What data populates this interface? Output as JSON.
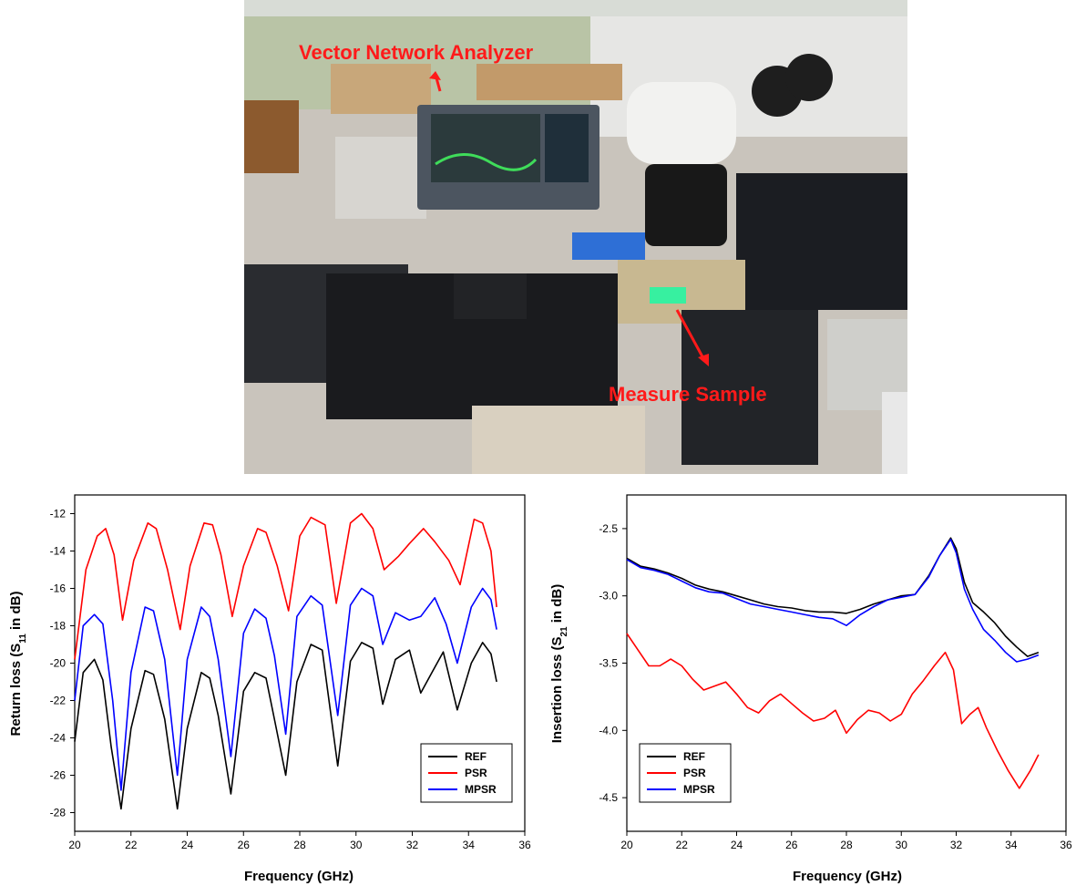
{
  "photo": {
    "labels": {
      "vna": "Vector Network Analyzer",
      "sample": "Measure Sample"
    },
    "colors": {
      "label": "#ff1a1a"
    }
  },
  "chart_data": [
    {
      "type": "line",
      "id": "return-loss",
      "xlabel": "Frequency (GHz)",
      "ylabel_parts": [
        "Return loss (S",
        "11",
        " in dB)"
      ],
      "xlim": [
        20,
        36
      ],
      "ylim": [
        -29,
        -11
      ],
      "xticks": [
        20,
        22,
        24,
        26,
        28,
        30,
        32,
        34,
        36
      ],
      "yticks": [
        -12,
        -14,
        -16,
        -18,
        -20,
        -22,
        -24,
        -26,
        -28
      ],
      "legend": "bottom-right",
      "series": [
        {
          "name": "REF",
          "color": "#000000",
          "x": [
            20,
            20.3,
            20.7,
            21.0,
            21.3,
            21.65,
            22.0,
            22.5,
            22.8,
            23.2,
            23.65,
            24.0,
            24.5,
            24.8,
            25.1,
            25.55,
            26.0,
            26.4,
            26.8,
            27.1,
            27.5,
            27.9,
            28.4,
            28.8,
            29.35,
            29.8,
            30.2,
            30.6,
            30.95,
            31.4,
            31.9,
            32.3,
            32.7,
            33.1,
            33.6,
            34.1,
            34.5,
            34.8,
            35.0
          ],
          "y": [
            -24.2,
            -20.5,
            -19.8,
            -20.9,
            -24.5,
            -27.8,
            -23.5,
            -20.4,
            -20.6,
            -23.0,
            -27.8,
            -23.5,
            -20.5,
            -20.8,
            -22.8,
            -27.0,
            -21.5,
            -20.5,
            -20.8,
            -23.0,
            -26.0,
            -21.0,
            -19.0,
            -19.3,
            -25.5,
            -19.9,
            -18.9,
            -19.2,
            -22.2,
            -19.8,
            -19.3,
            -21.6,
            -20.5,
            -19.4,
            -22.5,
            -20.0,
            -18.9,
            -19.5,
            -21.0
          ]
        },
        {
          "name": "PSR",
          "color": "#ff0000",
          "x": [
            20,
            20.4,
            20.8,
            21.1,
            21.4,
            21.7,
            22.1,
            22.6,
            22.9,
            23.3,
            23.75,
            24.1,
            24.6,
            24.9,
            25.2,
            25.6,
            26.0,
            26.5,
            26.8,
            27.2,
            27.6,
            28.0,
            28.4,
            28.9,
            29.3,
            29.8,
            30.2,
            30.6,
            31.0,
            31.5,
            31.9,
            32.4,
            32.8,
            33.3,
            33.7,
            34.2,
            34.5,
            34.8,
            35.0
          ],
          "y": [
            -19.8,
            -15.0,
            -13.2,
            -12.8,
            -14.2,
            -17.7,
            -14.5,
            -12.5,
            -12.8,
            -15.0,
            -18.2,
            -14.8,
            -12.5,
            -12.6,
            -14.2,
            -17.5,
            -14.8,
            -12.8,
            -13.0,
            -14.8,
            -17.2,
            -13.2,
            -12.2,
            -12.6,
            -16.8,
            -12.5,
            -12.0,
            -12.8,
            -15.0,
            -14.3,
            -13.6,
            -12.8,
            -13.5,
            -14.5,
            -15.8,
            -12.3,
            -12.5,
            -14.0,
            -17.0
          ]
        },
        {
          "name": "MPSR",
          "color": "#0000ff",
          "x": [
            20,
            20.3,
            20.7,
            21.0,
            21.35,
            21.65,
            22.0,
            22.5,
            22.8,
            23.2,
            23.65,
            24.0,
            24.5,
            24.8,
            25.1,
            25.55,
            26.0,
            26.4,
            26.8,
            27.1,
            27.5,
            27.9,
            28.4,
            28.8,
            29.35,
            29.8,
            30.2,
            30.6,
            30.95,
            31.4,
            31.9,
            32.3,
            32.8,
            33.2,
            33.6,
            34.1,
            34.5,
            34.8,
            35.0
          ],
          "y": [
            -22.0,
            -18.0,
            -17.4,
            -17.9,
            -22.0,
            -26.8,
            -20.5,
            -17.0,
            -17.2,
            -19.8,
            -26.0,
            -19.8,
            -17.0,
            -17.5,
            -19.8,
            -25.0,
            -18.4,
            -17.1,
            -17.6,
            -19.6,
            -23.8,
            -17.5,
            -16.4,
            -16.9,
            -22.8,
            -16.9,
            -16.0,
            -16.4,
            -19.0,
            -17.3,
            -17.7,
            -17.5,
            -16.5,
            -17.9,
            -20.0,
            -17.0,
            -16.0,
            -16.6,
            -18.2
          ]
        }
      ]
    },
    {
      "type": "line",
      "id": "insertion-loss",
      "xlabel": "Frequency (GHz)",
      "ylabel_parts": [
        "Insertion loss (S",
        "21",
        " in dB)"
      ],
      "xlim": [
        20,
        36
      ],
      "ylim": [
        -4.75,
        -2.25
      ],
      "xticks": [
        20,
        22,
        24,
        26,
        28,
        30,
        32,
        34,
        36
      ],
      "yticks": [
        -2.5,
        -3.0,
        -3.5,
        -4.0,
        -4.5
      ],
      "legend": "bottom-left",
      "series": [
        {
          "name": "REF",
          "color": "#000000",
          "x": [
            20,
            20.5,
            21.0,
            21.5,
            22.0,
            22.5,
            23.0,
            23.5,
            24.0,
            24.5,
            25.0,
            25.5,
            26.0,
            26.5,
            27.0,
            27.5,
            28.0,
            28.5,
            29.0,
            29.5,
            30.0,
            30.5,
            31.0,
            31.4,
            31.8,
            32.0,
            32.3,
            32.6,
            33.0,
            33.4,
            33.8,
            34.2,
            34.6,
            35.0
          ],
          "y": [
            -2.72,
            -2.78,
            -2.8,
            -2.83,
            -2.87,
            -2.92,
            -2.95,
            -2.97,
            -3.0,
            -3.03,
            -3.06,
            -3.08,
            -3.09,
            -3.11,
            -3.12,
            -3.12,
            -3.13,
            -3.1,
            -3.06,
            -3.03,
            -3.0,
            -2.99,
            -2.85,
            -2.7,
            -2.57,
            -2.65,
            -2.9,
            -3.05,
            -3.12,
            -3.2,
            -3.3,
            -3.38,
            -3.45,
            -3.42
          ]
        },
        {
          "name": "PSR",
          "color": "#ff0000",
          "x": [
            20,
            20.4,
            20.8,
            21.2,
            21.6,
            22.0,
            22.4,
            22.8,
            23.2,
            23.6,
            24.0,
            24.4,
            24.8,
            25.2,
            25.6,
            26.0,
            26.4,
            26.8,
            27.2,
            27.6,
            28.0,
            28.4,
            28.8,
            29.2,
            29.6,
            30.0,
            30.4,
            30.8,
            31.2,
            31.6,
            31.9,
            32.2,
            32.5,
            32.8,
            33.1,
            33.5,
            33.9,
            34.3,
            34.7,
            35.0
          ],
          "y": [
            -3.28,
            -3.4,
            -3.52,
            -3.52,
            -3.47,
            -3.52,
            -3.62,
            -3.7,
            -3.67,
            -3.64,
            -3.73,
            -3.83,
            -3.87,
            -3.78,
            -3.73,
            -3.8,
            -3.87,
            -3.93,
            -3.91,
            -3.85,
            -4.02,
            -3.92,
            -3.85,
            -3.87,
            -3.93,
            -3.88,
            -3.73,
            -3.63,
            -3.52,
            -3.42,
            -3.55,
            -3.95,
            -3.88,
            -3.83,
            -3.98,
            -4.15,
            -4.3,
            -4.43,
            -4.3,
            -4.18
          ]
        },
        {
          "name": "MPSR",
          "color": "#0000ff",
          "x": [
            20,
            20.5,
            21.0,
            21.5,
            22.0,
            22.5,
            23.0,
            23.5,
            24.0,
            24.5,
            25.0,
            25.5,
            26.0,
            26.5,
            27.0,
            27.5,
            28.0,
            28.5,
            29.0,
            29.5,
            30.0,
            30.5,
            31.0,
            31.4,
            31.8,
            32.0,
            32.3,
            32.6,
            33.0,
            33.4,
            33.8,
            34.2,
            34.6,
            35.0
          ],
          "y": [
            -2.73,
            -2.79,
            -2.81,
            -2.84,
            -2.89,
            -2.94,
            -2.97,
            -2.98,
            -3.02,
            -3.06,
            -3.08,
            -3.1,
            -3.12,
            -3.14,
            -3.16,
            -3.17,
            -3.22,
            -3.14,
            -3.08,
            -3.03,
            -3.01,
            -2.99,
            -2.86,
            -2.7,
            -2.58,
            -2.68,
            -2.95,
            -3.1,
            -3.25,
            -3.33,
            -3.42,
            -3.49,
            -3.47,
            -3.44
          ]
        }
      ]
    }
  ]
}
